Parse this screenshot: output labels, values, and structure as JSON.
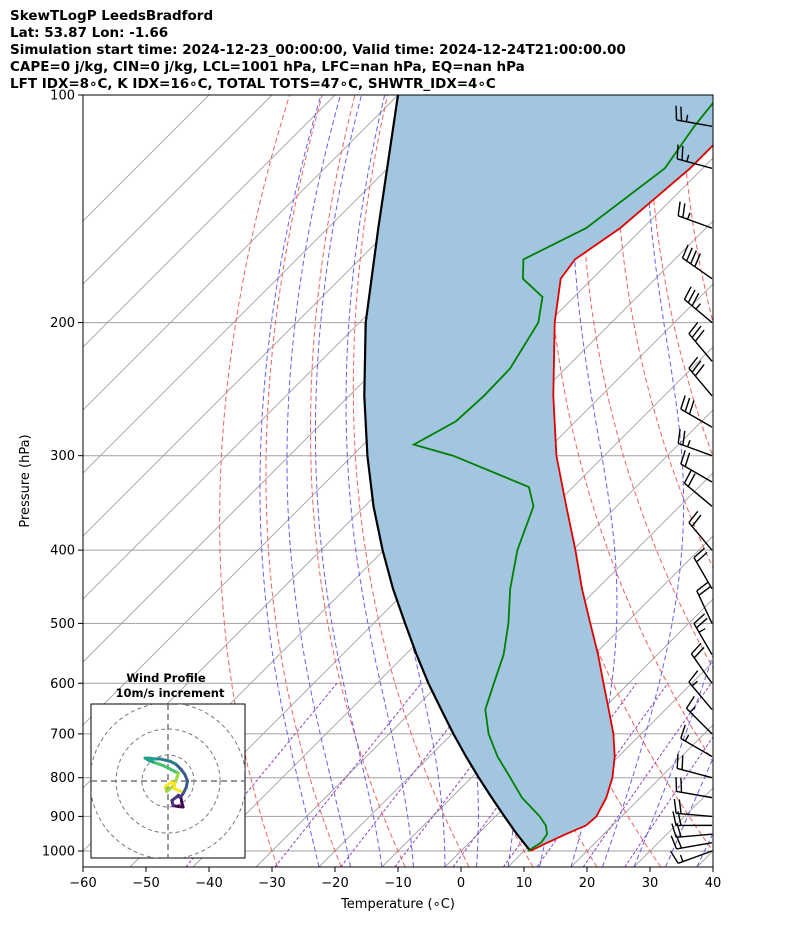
{
  "header": {
    "title": "SkewTLogP LeedsBradford",
    "location": "Lat: 53.87   Lon: -1.66",
    "times": "Simulation start time: 2024-12-23_00:00:00, Valid time: 2024-12-24T21:00:00.00",
    "indices1": "CAPE=0 j/kg, CIN=0 j/kg, LCL=1001 hPa, LFC=nan hPa, EQ=nan hPa",
    "indices2": "LFT IDX=8∘C, K IDX=16∘C, TOTAL TOTS=47∘C, SHWTR_IDX=4∘C"
  },
  "colors": {
    "temperature": "#e00000",
    "dewpoint": "#008000",
    "parcel": "#000000",
    "fill": "#a3c6e0",
    "dry_adiabat": "#f06060",
    "moist_adiabat": "#6060f0",
    "mixing_ratio": "#9040c0",
    "isotherm": "#a0a0a0"
  },
  "chart_data": {
    "type": "line",
    "xlabel": "Temperature (∘C)",
    "ylabel": "Pressure (hPa)",
    "xlim": [
      -60,
      40
    ],
    "ylim": [
      1050,
      100
    ],
    "y_scale": "log",
    "grid": true,
    "x_ticks": [
      "−60",
      "−50",
      "−40",
      "−30",
      "−20",
      "−10",
      "0",
      "10",
      "20",
      "30",
      "40"
    ],
    "x_tick_values": [
      -60,
      -50,
      -40,
      -30,
      -20,
      -10,
      0,
      10,
      20,
      30,
      40
    ],
    "y_ticks": [
      "1000",
      "900",
      "800",
      "700",
      "600",
      "500",
      "400",
      "300",
      "200",
      "100"
    ],
    "y_tick_values": [
      1000,
      900,
      800,
      700,
      600,
      500,
      400,
      300,
      200,
      100
    ],
    "series": [
      {
        "key": "temperature",
        "pressure": [
          1000,
          975,
          950,
          925,
          900,
          850,
          800,
          750,
          700,
          650,
          600,
          550,
          500,
          450,
          400,
          350,
          300,
          250,
          200,
          175,
          165,
          150,
          125,
          100
        ],
        "values": [
          11.0,
          12.4,
          14.0,
          15.8,
          16.0,
          14.6,
          12.4,
          9.4,
          5.6,
          1.0,
          -4.0,
          -9.4,
          -15.6,
          -22.4,
          -29.6,
          -38.0,
          -47.6,
          -57.6,
          -69.0,
          -75.0,
          -75.8,
          -73.6,
          -72.0,
          -72.0
        ]
      },
      {
        "key": "dewpoint",
        "pressure": [
          1000,
          975,
          950,
          925,
          900,
          850,
          800,
          750,
          700,
          650,
          600,
          550,
          500,
          450,
          400,
          350,
          330,
          300,
          290,
          270,
          250,
          230,
          200,
          185,
          175,
          165,
          150,
          125,
          110,
          100
        ],
        "values": [
          10.6,
          11.4,
          11.0,
          9.4,
          7.0,
          1.2,
          -3.8,
          -9.2,
          -14.2,
          -18.6,
          -21.4,
          -24.4,
          -28.6,
          -33.8,
          -38.8,
          -43.2,
          -47.0,
          -64.0,
          -72.0,
          -69.0,
          -68.6,
          -68.8,
          -71.6,
          -75.0,
          -81.0,
          -84.0,
          -79.0,
          -76.0,
          -78.0,
          -79.0
        ]
      },
      {
        "key": "parcel",
        "pressure": [
          1000,
          950,
          900,
          850,
          800,
          750,
          700,
          650,
          600,
          550,
          500,
          450,
          400,
          350,
          300,
          250,
          200,
          150,
          100
        ],
        "values": [
          11.0,
          6.2,
          1.4,
          -3.6,
          -8.8,
          -14.2,
          -19.8,
          -25.6,
          -31.8,
          -38.2,
          -45.0,
          -52.4,
          -60.2,
          -68.6,
          -77.6,
          -87.6,
          -99.0,
          -112.0,
          -130.0
        ]
      }
    ],
    "wind_barbs": {
      "pressure": [
        1000,
        975,
        950,
        925,
        900,
        850,
        800,
        750,
        700,
        650,
        600,
        550,
        500,
        450,
        400,
        350,
        325,
        300,
        275,
        250,
        225,
        200,
        175,
        150,
        125,
        110
      ],
      "speed_kt": [
        15,
        20,
        20,
        20,
        20,
        20,
        20,
        15,
        15,
        15,
        20,
        25,
        20,
        20,
        20,
        20,
        20,
        25,
        30,
        30,
        30,
        35,
        40,
        25,
        25,
        25
      ],
      "direction_deg": [
        250,
        260,
        265,
        270,
        275,
        280,
        285,
        300,
        315,
        320,
        325,
        330,
        335,
        330,
        320,
        310,
        300,
        290,
        300,
        320,
        320,
        310,
        305,
        290,
        285,
        280
      ]
    },
    "hodograph": {
      "title": "Wind Profile",
      "subtitle": "10m/s increment",
      "rings_ms": [
        10,
        20,
        30
      ],
      "u": [
        4.0,
        5.0,
        5.4,
        5.8,
        4.0,
        2.0,
        1.5,
        3.5,
        5.0,
        6.0,
        7.0,
        7.5,
        6.5,
        5.0,
        3.0,
        1.0,
        -1.0,
        -3.0,
        -5.0,
        -7.5,
        -8.8,
        -7.5,
        -5.0,
        -3.5,
        -2.0,
        0.0,
        2.0,
        4.0,
        3.0,
        2.0,
        -0.5,
        -1.0,
        1.5,
        2.5,
        2.5,
        5.0
      ],
      "v": [
        -5.5,
        -6.5,
        -8.8,
        -10.0,
        -9.8,
        -9.5,
        -7.5,
        -6.0,
        -6.0,
        -4.5,
        -2.5,
        0.0,
        2.5,
        4.5,
        6.5,
        7.5,
        8.0,
        8.5,
        8.5,
        8.8,
        8.8,
        8.0,
        7.0,
        6.5,
        6.0,
        5.0,
        4.0,
        3.0,
        0.0,
        -2.0,
        -4.0,
        -2.0,
        -0.5,
        -1.0,
        -3.0,
        -4.0
      ]
    }
  }
}
